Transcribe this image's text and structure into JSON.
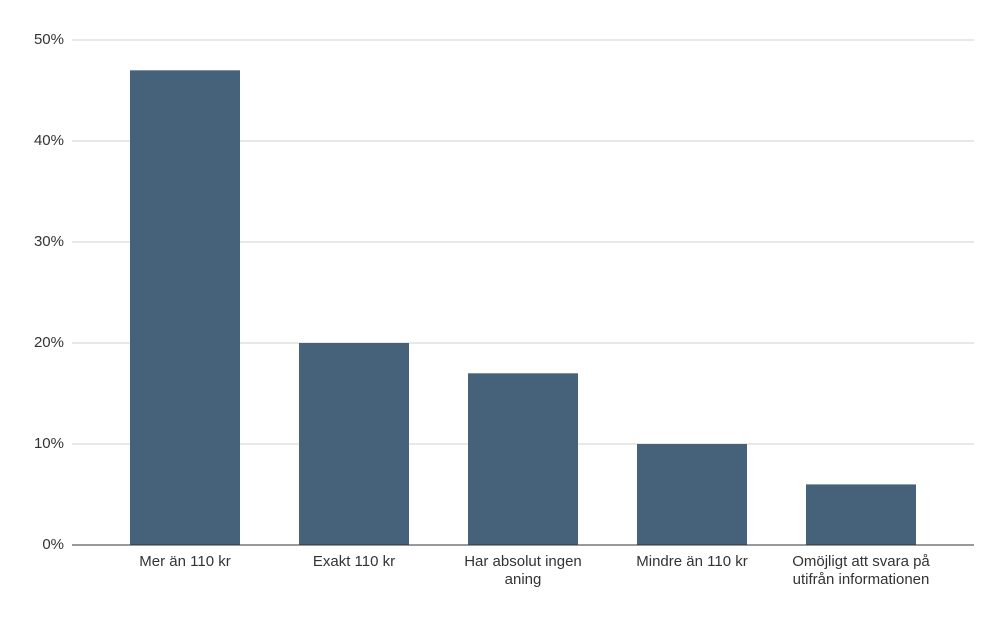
{
  "chart_data": {
    "type": "bar",
    "categories": [
      "Mer än 110 kr",
      "Exakt 110 kr",
      "Har absolut ingen aning",
      "Mindre än 110 kr",
      "Omöjligt att svara på utifrån informationen"
    ],
    "values": [
      47,
      20,
      17,
      10,
      6
    ],
    "color": "#46627a",
    "ylim": [
      0,
      50
    ],
    "yticks": [
      {
        "value": 0,
        "label": "0%"
      },
      {
        "value": 10,
        "label": "10%"
      },
      {
        "value": 20,
        "label": "20%"
      },
      {
        "value": 30,
        "label": "30%"
      },
      {
        "value": 40,
        "label": "40%"
      },
      {
        "value": 50,
        "label": "50%"
      }
    ],
    "grid": true
  }
}
